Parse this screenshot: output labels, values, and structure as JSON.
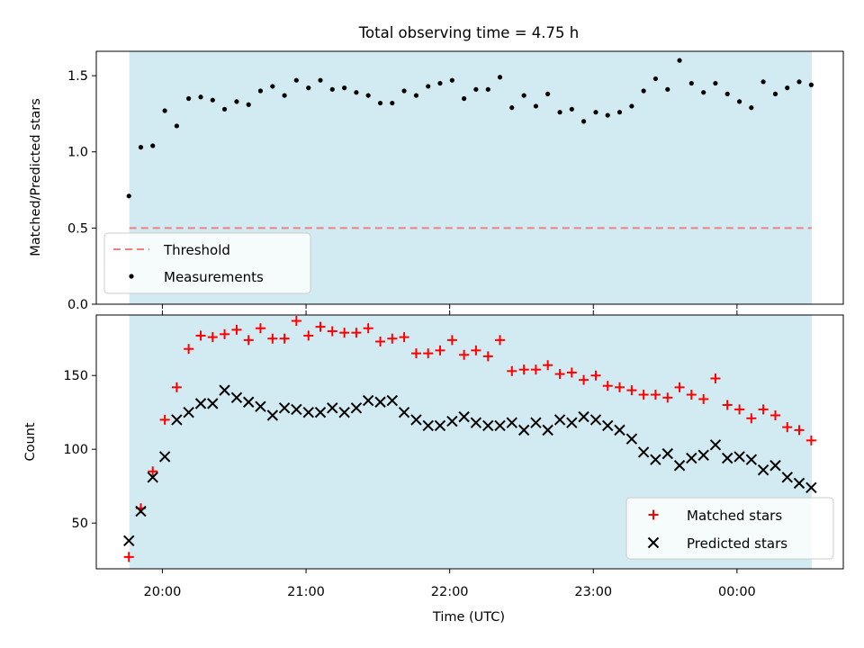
{
  "title": "Total observing time = 4.75 h",
  "colors": {
    "observing_window": "#add8e6",
    "threshold_line": "#f08080",
    "measurements": "#000000",
    "matched": "#ff0000",
    "predicted": "#000000"
  },
  "chart_data": [
    {
      "type": "scatter",
      "panel": "top",
      "title": "Total observing time = 4.75 h",
      "xlabel": "",
      "ylabel": "Matched/Predicted stars",
      "x_unit": "hours since 20:00 UTC",
      "xlim": [
        -0.46,
        4.74
      ],
      "ylim": [
        0,
        1.66
      ],
      "yticks": [
        0.0,
        0.5,
        1.0,
        1.5
      ],
      "ytick_labels": [
        "0.0",
        "0.5",
        "1.0",
        "1.5"
      ],
      "observing_window": [
        -0.23,
        4.52
      ],
      "threshold": 0.5,
      "legend": {
        "placement": "lower-left",
        "entries": [
          "Threshold",
          "Measurements"
        ]
      },
      "grid": false,
      "series": [
        {
          "name": "Measurements",
          "marker": "dot",
          "x": [
            -0.233,
            -0.15,
            -0.067,
            0.017,
            0.1,
            0.183,
            0.267,
            0.35,
            0.433,
            0.517,
            0.6,
            0.683,
            0.767,
            0.85,
            0.933,
            1.017,
            1.1,
            1.183,
            1.267,
            1.35,
            1.433,
            1.517,
            1.6,
            1.683,
            1.767,
            1.85,
            1.933,
            2.017,
            2.1,
            2.183,
            2.267,
            2.35,
            2.433,
            2.517,
            2.6,
            2.683,
            2.767,
            2.85,
            2.933,
            3.017,
            3.1,
            3.183,
            3.267,
            3.35,
            3.433,
            3.517,
            3.6,
            3.683,
            3.767,
            3.85,
            3.933,
            4.017,
            4.1,
            4.183,
            4.267,
            4.35,
            4.433,
            4.517
          ],
          "y": [
            0.71,
            1.03,
            1.04,
            1.27,
            1.17,
            1.35,
            1.36,
            1.34,
            1.28,
            1.33,
            1.31,
            1.4,
            1.43,
            1.37,
            1.47,
            1.42,
            1.47,
            1.41,
            1.42,
            1.39,
            1.37,
            1.32,
            1.32,
            1.4,
            1.37,
            1.43,
            1.45,
            1.47,
            1.35,
            1.41,
            1.41,
            1.49,
            1.29,
            1.37,
            1.3,
            1.38,
            1.26,
            1.28,
            1.2,
            1.26,
            1.24,
            1.26,
            1.3,
            1.4,
            1.48,
            1.41,
            1.6,
            1.45,
            1.39,
            1.45,
            1.38,
            1.33,
            1.29,
            1.46,
            1.38,
            1.42,
            1.46,
            1.44
          ]
        }
      ]
    },
    {
      "type": "scatter",
      "panel": "bottom",
      "xlabel": "Time (UTC)",
      "ylabel": "Count",
      "x_unit": "hours since 20:00 UTC",
      "xlim": [
        -0.46,
        4.74
      ],
      "ylim": [
        19,
        191
      ],
      "yticks": [
        50,
        100,
        150
      ],
      "ytick_labels": [
        "50",
        "100",
        "150"
      ],
      "xticks": [
        0,
        1,
        2,
        3,
        4
      ],
      "xtick_labels": [
        "20:00",
        "21:00",
        "22:00",
        "23:00",
        "00:00"
      ],
      "observing_window": [
        -0.23,
        4.52
      ],
      "legend": {
        "placement": "lower-right",
        "entries": [
          "Matched stars",
          "Predicted stars"
        ]
      },
      "grid": false,
      "series": [
        {
          "name": "Matched stars",
          "marker": "plus",
          "x": [
            -0.233,
            -0.15,
            -0.067,
            0.017,
            0.1,
            0.183,
            0.267,
            0.35,
            0.433,
            0.517,
            0.6,
            0.683,
            0.767,
            0.85,
            0.933,
            1.017,
            1.1,
            1.183,
            1.267,
            1.35,
            1.433,
            1.517,
            1.6,
            1.683,
            1.767,
            1.85,
            1.933,
            2.017,
            2.1,
            2.183,
            2.267,
            2.35,
            2.433,
            2.517,
            2.6,
            2.683,
            2.767,
            2.85,
            2.933,
            3.017,
            3.1,
            3.183,
            3.267,
            3.35,
            3.433,
            3.517,
            3.6,
            3.683,
            3.767,
            3.85,
            3.933,
            4.017,
            4.1,
            4.183,
            4.267,
            4.35,
            4.433,
            4.517
          ],
          "y": [
            27,
            60,
            85,
            120,
            142,
            168,
            177,
            176,
            178,
            181,
            174,
            182,
            175,
            175,
            187,
            177,
            183,
            180,
            179,
            179,
            182,
            173,
            175,
            176,
            165,
            165,
            167,
            174,
            164,
            167,
            163,
            174,
            153,
            154,
            154,
            157,
            151,
            152,
            147,
            150,
            143,
            142,
            140,
            137,
            137,
            135,
            142,
            137,
            134,
            148,
            130,
            127,
            121,
            127,
            123,
            115,
            113,
            106
          ],
          "labels": []
        },
        {
          "name": "Predicted stars",
          "marker": "x",
          "x": [
            -0.233,
            -0.15,
            -0.067,
            0.017,
            0.1,
            0.183,
            0.267,
            0.35,
            0.433,
            0.517,
            0.6,
            0.683,
            0.767,
            0.85,
            0.933,
            1.017,
            1.1,
            1.183,
            1.267,
            1.35,
            1.433,
            1.517,
            1.6,
            1.683,
            1.767,
            1.85,
            1.933,
            2.017,
            2.1,
            2.183,
            2.267,
            2.35,
            2.433,
            2.517,
            2.6,
            2.683,
            2.767,
            2.85,
            2.933,
            3.017,
            3.1,
            3.183,
            3.267,
            3.35,
            3.433,
            3.517,
            3.6,
            3.683,
            3.767,
            3.85,
            3.933,
            4.017,
            4.1,
            4.183,
            4.267,
            4.35,
            4.433,
            4.517
          ],
          "y": [
            38,
            58,
            81,
            95,
            120,
            125,
            131,
            131,
            140,
            135,
            132,
            129,
            123,
            128,
            127,
            125,
            125,
            128,
            125,
            128,
            133,
            132,
            133,
            125,
            120,
            116,
            116,
            119,
            122,
            118,
            116,
            116,
            118,
            113,
            118,
            113,
            120,
            118,
            122,
            120,
            116,
            113,
            107,
            98,
            93,
            97,
            89,
            94,
            96,
            103,
            94,
            95,
            93,
            86,
            89,
            81,
            77,
            74
          ]
        }
      ]
    }
  ]
}
